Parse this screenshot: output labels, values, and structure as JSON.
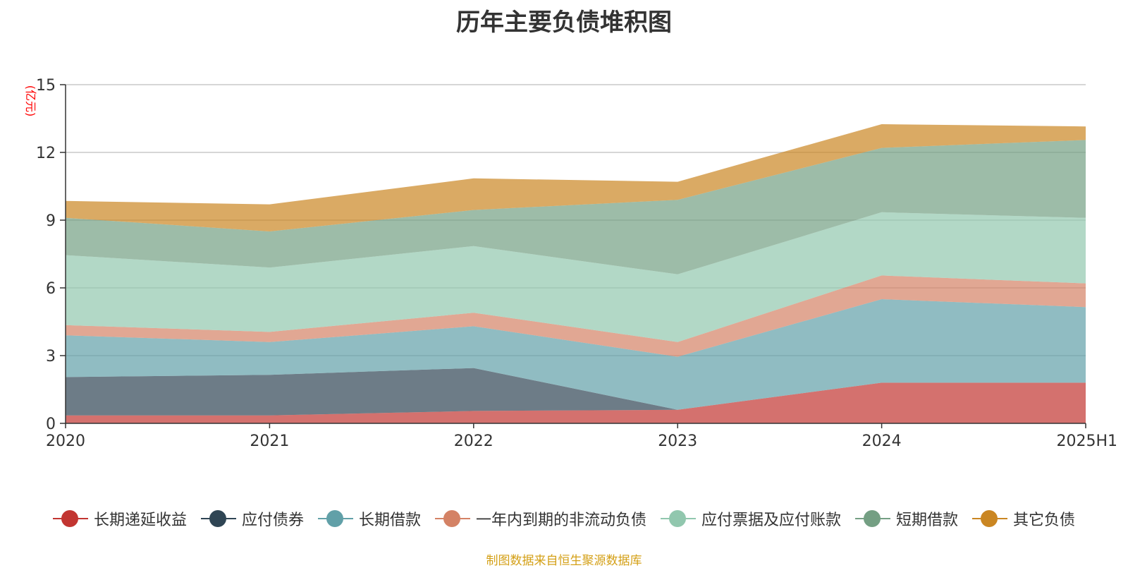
{
  "chart_data": {
    "type": "area",
    "stacked": true,
    "title": "历年主要负债堆积图",
    "ylabel": "(亿元)",
    "xlabel": "",
    "categories": [
      "2020",
      "2021",
      "2022",
      "2023",
      "2024",
      "2025H1"
    ],
    "ylim": [
      0,
      15
    ],
    "yticks": [
      0,
      3,
      6,
      9,
      12,
      15
    ],
    "grid": true,
    "legend_position": "bottom",
    "series": [
      {
        "name": "长期递延收益",
        "color": "#c23531",
        "values": [
          0.35,
          0.35,
          0.55,
          0.6,
          1.8,
          1.8
        ]
      },
      {
        "name": "应付债券",
        "color": "#2f4554",
        "values": [
          1.7,
          1.8,
          1.9,
          0.0,
          0.0,
          0.0
        ]
      },
      {
        "name": "长期借款",
        "color": "#61a0a8",
        "values": [
          1.85,
          1.45,
          1.85,
          2.35,
          3.7,
          3.35
        ]
      },
      {
        "name": "一年内到期的非流动负债",
        "color": "#d48265",
        "values": [
          0.45,
          0.45,
          0.6,
          0.65,
          1.05,
          1.05
        ]
      },
      {
        "name": "应付票据及应付账款",
        "color": "#91c7ae",
        "values": [
          3.1,
          2.85,
          2.95,
          3.0,
          2.8,
          2.9
        ]
      },
      {
        "name": "短期借款",
        "color": "#749f83",
        "values": [
          1.65,
          1.6,
          1.6,
          3.3,
          2.85,
          3.45
        ]
      },
      {
        "name": "其它负债",
        "color": "#ca8622",
        "values": [
          0.75,
          1.2,
          1.4,
          0.8,
          1.05,
          0.6
        ]
      }
    ]
  },
  "footer": {
    "source": "制图数据来自恒生聚源数据库"
  }
}
